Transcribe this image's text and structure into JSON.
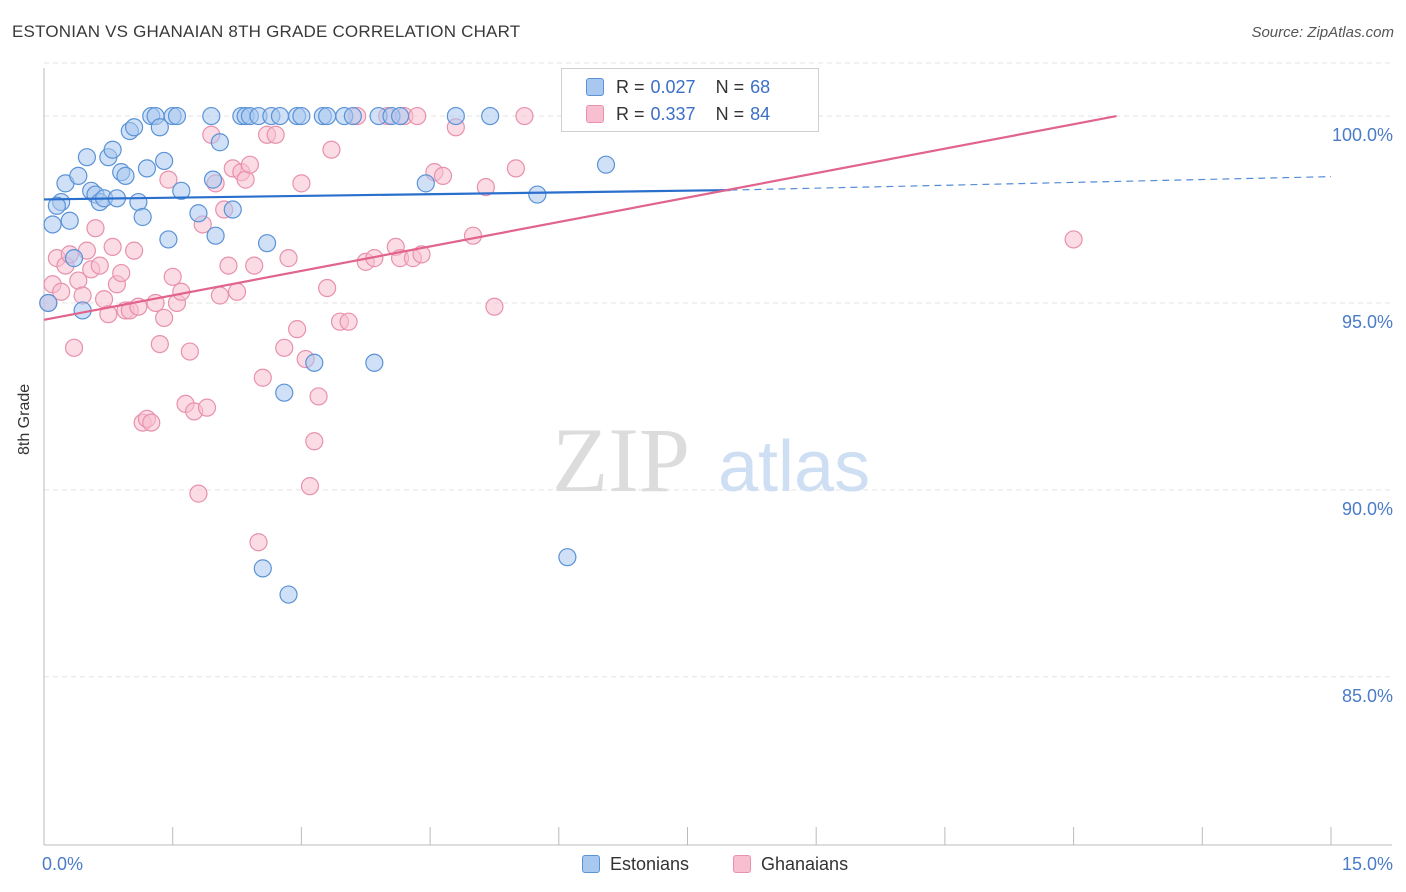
{
  "title": "ESTONIAN VS GHANAIAN 8TH GRADE CORRELATION CHART",
  "source": "Source: ZipAtlas.com",
  "watermark": {
    "zip": "ZIP",
    "atlas": "atlas"
  },
  "legend": {
    "series": [
      {
        "r_label": "R =",
        "r_value": "0.027",
        "n_label": "N =",
        "n_value": "68"
      },
      {
        "r_label": "R =",
        "r_value": "0.337",
        "n_label": "N =",
        "n_value": "84"
      }
    ]
  },
  "bottom_legend": [
    "Estonians",
    "Ghanaians"
  ],
  "colors": {
    "estonian_fill": "#a9c8f0",
    "estonian_stroke": "#5b93d6",
    "estonian_line": "#2a6fcc",
    "ghanaian_fill": "#f7bfd0",
    "ghanaian_stroke": "#e891ad",
    "ghanaian_line": "#e0648d",
    "tick_label": "#4a7cc7",
    "grid": "#e3e3e3"
  },
  "chart_data": {
    "type": "scatter",
    "title": "ESTONIAN VS GHANAIAN 8TH GRADE CORRELATION CHART",
    "xlabel": "",
    "ylabel": "8th Grade",
    "xlim": [
      0,
      15
    ],
    "ylim": [
      80.5,
      101.5
    ],
    "x_ticks": [
      0,
      1.5,
      3,
      4.5,
      6,
      7.5,
      9,
      10.5,
      12,
      13.5,
      15
    ],
    "x_tick_labels": [
      {
        "x": 0,
        "label": "0.0%"
      },
      {
        "x": 15,
        "label": "15.0%"
      }
    ],
    "y_ticks": [
      100,
      95,
      90,
      85
    ],
    "y_tick_labels": [
      "100.0%",
      "95.0%",
      "90.0%",
      "85.0%"
    ],
    "grid": "horizontal dashed",
    "legend_position": "top-center",
    "series": [
      {
        "name": "Estonians",
        "R": 0.027,
        "N": 68,
        "trend": {
          "x": [
            0,
            8.0
          ],
          "y": [
            97.77,
            98.02
          ],
          "dashed_to": [
            15.0,
            98.38
          ]
        },
        "points": [
          [
            0.1,
            97.1
          ],
          [
            0.2,
            97.7
          ],
          [
            0.15,
            97.6
          ],
          [
            0.25,
            98.2
          ],
          [
            0.3,
            97.2
          ],
          [
            0.35,
            96.2
          ],
          [
            0.4,
            98.4
          ],
          [
            0.5,
            98.9
          ],
          [
            0.55,
            98.0
          ],
          [
            0.6,
            97.9
          ],
          [
            0.65,
            97.7
          ],
          [
            0.7,
            97.8
          ],
          [
            0.75,
            98.9
          ],
          [
            0.8,
            99.1
          ],
          [
            0.85,
            97.8
          ],
          [
            0.9,
            98.5
          ],
          [
            0.95,
            98.4
          ],
          [
            1.0,
            99.6
          ],
          [
            1.05,
            99.7
          ],
          [
            1.1,
            97.7
          ],
          [
            1.15,
            97.3
          ],
          [
            1.2,
            98.6
          ],
          [
            1.25,
            100.0
          ],
          [
            1.3,
            100.0
          ],
          [
            1.35,
            99.7
          ],
          [
            1.4,
            98.8
          ],
          [
            1.45,
            96.7
          ],
          [
            1.5,
            100.0
          ],
          [
            1.55,
            100.0
          ],
          [
            1.6,
            98.0
          ],
          [
            1.8,
            97.4
          ],
          [
            1.95,
            100.0
          ],
          [
            1.97,
            98.3
          ],
          [
            2.0,
            96.8
          ],
          [
            2.05,
            99.3
          ],
          [
            2.2,
            97.5
          ],
          [
            2.3,
            100.0
          ],
          [
            2.35,
            100.0
          ],
          [
            2.4,
            100.0
          ],
          [
            2.5,
            100.0
          ],
          [
            2.6,
            96.6
          ],
          [
            2.65,
            100.0
          ],
          [
            2.75,
            100.0
          ],
          [
            2.8,
            92.6
          ],
          [
            2.95,
            100.0
          ],
          [
            3.0,
            100.0
          ],
          [
            3.15,
            93.4
          ],
          [
            3.25,
            100.0
          ],
          [
            3.3,
            100.0
          ],
          [
            3.5,
            100.0
          ],
          [
            3.6,
            100.0
          ],
          [
            3.85,
            93.4
          ],
          [
            3.9,
            100.0
          ],
          [
            4.05,
            100.0
          ],
          [
            4.15,
            100.0
          ],
          [
            4.45,
            98.2
          ],
          [
            4.8,
            100.0
          ],
          [
            5.2,
            100.0
          ],
          [
            5.75,
            97.9
          ],
          [
            6.1,
            88.2
          ],
          [
            6.25,
            100.0
          ],
          [
            6.55,
            98.7
          ],
          [
            7.0,
            100.0
          ],
          [
            7.05,
            100.0
          ],
          [
            2.55,
            87.9
          ],
          [
            2.85,
            87.2
          ],
          [
            0.45,
            94.8
          ],
          [
            0.05,
            95.0
          ]
        ]
      },
      {
        "name": "Ghanaians",
        "R": 0.337,
        "N": 84,
        "trend": {
          "x": [
            0,
            12.5
          ],
          "y": [
            94.55,
            100.0
          ]
        },
        "points": [
          [
            0.05,
            95.0
          ],
          [
            0.1,
            95.5
          ],
          [
            0.15,
            96.2
          ],
          [
            0.2,
            95.3
          ],
          [
            0.25,
            96.0
          ],
          [
            0.3,
            96.3
          ],
          [
            0.35,
            93.8
          ],
          [
            0.4,
            95.6
          ],
          [
            0.45,
            95.2
          ],
          [
            0.5,
            96.4
          ],
          [
            0.55,
            95.9
          ],
          [
            0.6,
            97.0
          ],
          [
            0.65,
            96.0
          ],
          [
            0.7,
            95.1
          ],
          [
            0.75,
            94.7
          ],
          [
            0.8,
            96.5
          ],
          [
            0.85,
            95.5
          ],
          [
            0.9,
            95.8
          ],
          [
            0.95,
            94.8
          ],
          [
            1.0,
            94.8
          ],
          [
            1.05,
            96.4
          ],
          [
            1.1,
            94.9
          ],
          [
            1.15,
            91.8
          ],
          [
            1.2,
            91.9
          ],
          [
            1.25,
            91.8
          ],
          [
            1.3,
            95.0
          ],
          [
            1.35,
            93.9
          ],
          [
            1.4,
            94.6
          ],
          [
            1.45,
            98.3
          ],
          [
            1.5,
            95.7
          ],
          [
            1.55,
            95.0
          ],
          [
            1.6,
            95.3
          ],
          [
            1.65,
            92.3
          ],
          [
            1.7,
            93.7
          ],
          [
            1.75,
            92.1
          ],
          [
            1.8,
            89.9
          ],
          [
            1.85,
            97.1
          ],
          [
            1.9,
            92.2
          ],
          [
            1.95,
            99.5
          ],
          [
            2.0,
            98.2
          ],
          [
            2.05,
            95.2
          ],
          [
            2.1,
            97.5
          ],
          [
            2.15,
            96.0
          ],
          [
            2.2,
            98.6
          ],
          [
            2.25,
            95.3
          ],
          [
            2.3,
            98.5
          ],
          [
            2.35,
            98.3
          ],
          [
            2.4,
            98.7
          ],
          [
            2.45,
            96.0
          ],
          [
            2.5,
            88.6
          ],
          [
            2.55,
            93.0
          ],
          [
            2.6,
            99.5
          ],
          [
            2.7,
            99.5
          ],
          [
            2.8,
            93.8
          ],
          [
            2.85,
            96.2
          ],
          [
            2.95,
            94.3
          ],
          [
            3.0,
            98.2
          ],
          [
            3.05,
            93.5
          ],
          [
            3.1,
            90.1
          ],
          [
            3.15,
            91.3
          ],
          [
            3.2,
            92.5
          ],
          [
            3.3,
            95.4
          ],
          [
            3.35,
            99.1
          ],
          [
            3.45,
            94.5
          ],
          [
            3.55,
            94.5
          ],
          [
            3.65,
            100.0
          ],
          [
            3.75,
            96.1
          ],
          [
            3.85,
            96.2
          ],
          [
            4.0,
            100.0
          ],
          [
            4.1,
            96.5
          ],
          [
            4.15,
            96.2
          ],
          [
            4.2,
            100.0
          ],
          [
            4.3,
            96.2
          ],
          [
            4.35,
            100.0
          ],
          [
            4.4,
            96.3
          ],
          [
            4.55,
            98.5
          ],
          [
            4.65,
            98.4
          ],
          [
            4.8,
            99.7
          ],
          [
            5.0,
            96.8
          ],
          [
            5.15,
            98.1
          ],
          [
            5.25,
            94.9
          ],
          [
            5.5,
            98.6
          ],
          [
            5.6,
            100.0
          ],
          [
            12.0,
            96.7
          ]
        ]
      }
    ]
  }
}
